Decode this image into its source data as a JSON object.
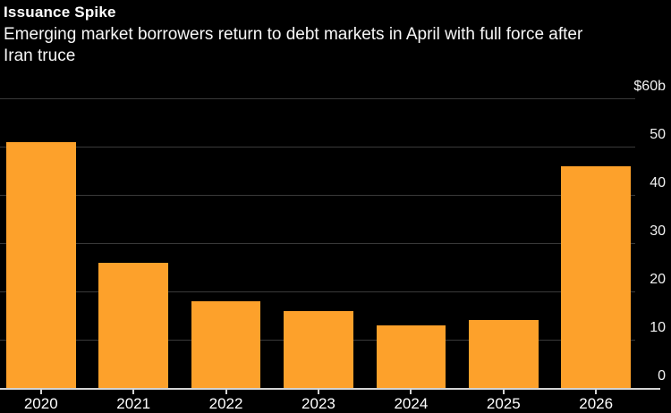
{
  "header": {
    "title": "Issuance Spike",
    "subtitle_line1": "Emerging market borrowers return to debt markets in April with full force after",
    "subtitle_line2": "Iran truce"
  },
  "chart_data": {
    "type": "bar",
    "title": "Issuance Spike",
    "subtitle": "Emerging market borrowers return to debt markets in April with full force after Iran truce",
    "categories": [
      "2020",
      "2021",
      "2022",
      "2023",
      "2024",
      "2025",
      "2026"
    ],
    "values": [
      51,
      26,
      18,
      16,
      13,
      14,
      46
    ],
    "xlabel": "",
    "ylabel": "",
    "y_unit_label": "$60b",
    "ylim": [
      0,
      60
    ],
    "yticks": [
      0,
      10,
      20,
      30,
      40,
      50,
      60
    ],
    "ytick_labels": [
      "0",
      "10",
      "20",
      "30",
      "40",
      "50",
      "$60b"
    ],
    "grid": true,
    "legend": false,
    "ytick_side": "right",
    "colors": {
      "bar": "#FDA12B",
      "background": "#000000",
      "gridline": "#3A3A3A",
      "axis_line": "#D4D4D4",
      "text": "#FFFFFF"
    }
  }
}
